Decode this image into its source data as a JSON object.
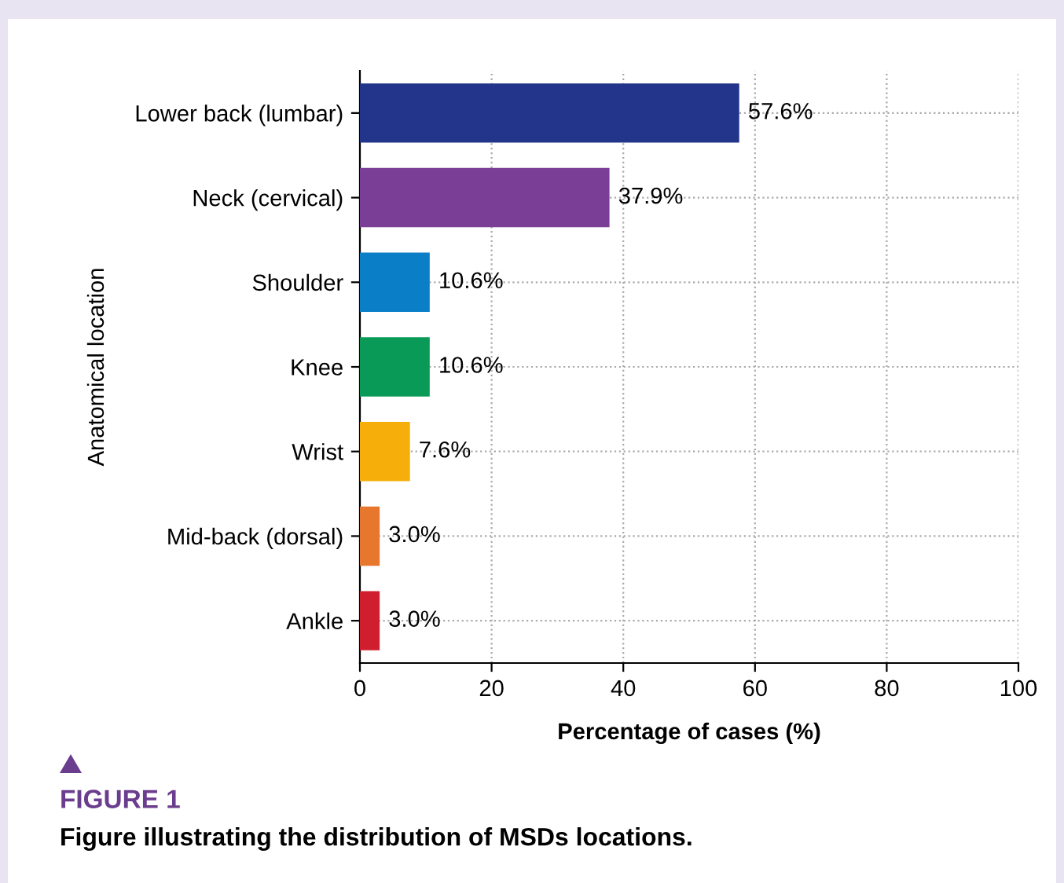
{
  "chart_data": {
    "type": "bar",
    "orientation": "horizontal",
    "xlabel": "Percentage of cases (%)",
    "ylabel": "Anatomical location",
    "categories": [
      "Lower back (lumbar)",
      "Neck (cervical)",
      "Shoulder",
      "Knee",
      "Wrist",
      "Mid-back (dorsal)",
      "Ankle"
    ],
    "values": [
      57.6,
      37.9,
      10.6,
      10.6,
      7.6,
      3.0,
      3.0
    ],
    "colors": [
      "#22358a",
      "#7a3e97",
      "#0a7fc8",
      "#0a9a57",
      "#f6ae0a",
      "#e8772e",
      "#cf1f2e"
    ],
    "value_labels": [
      "57.6%",
      "37.9%",
      "10.6%",
      "10.6%",
      "7.6%",
      "3.0%",
      "3.0%"
    ],
    "xlim": [
      0,
      100
    ],
    "xticks": [
      0,
      20,
      40,
      60,
      80,
      100
    ],
    "grid": true,
    "annotations": [
      "FIGURE 1",
      "Figure illustrating the distribution of MSDs locations."
    ]
  }
}
